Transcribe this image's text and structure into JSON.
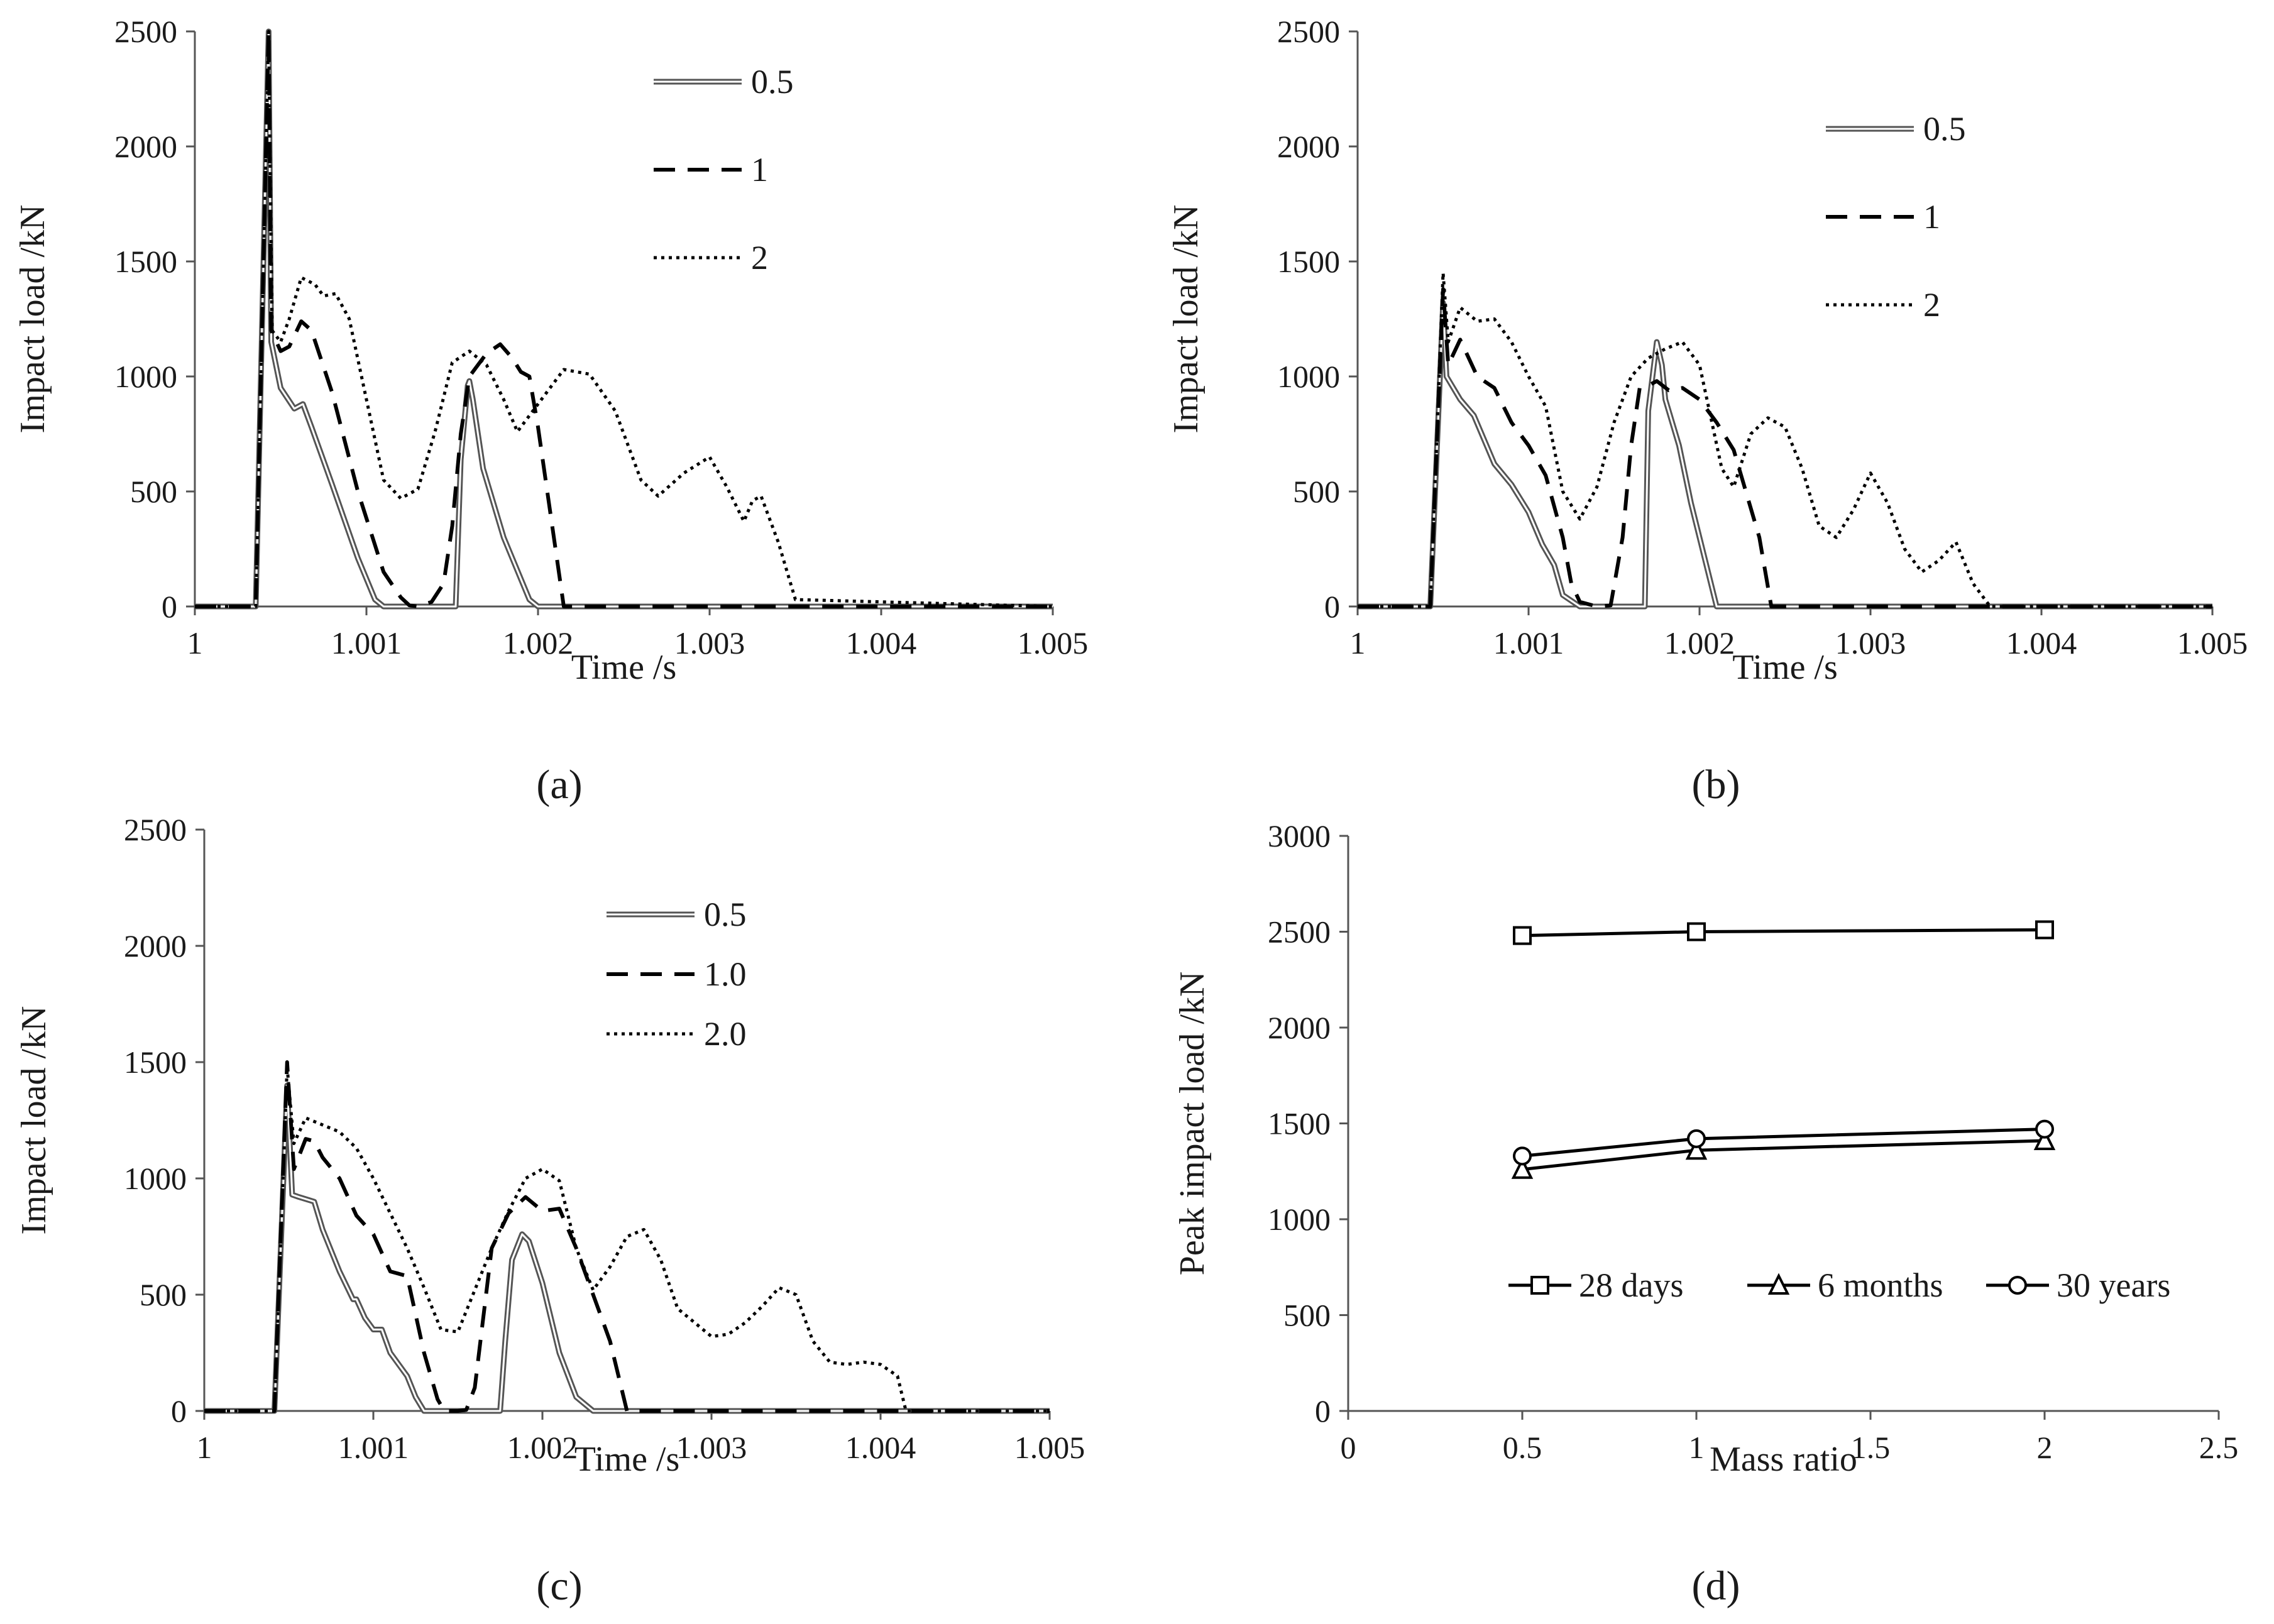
{
  "figure": {
    "panel_labels": [
      "(a)",
      "(b)",
      "(c)",
      "(d)"
    ]
  },
  "chart_data": [
    {
      "type": "line",
      "panel": "(a)",
      "xlabel": "Time /s",
      "ylabel": "Impact load /kN",
      "xlim": [
        1,
        1.005
      ],
      "ylim": [
        0,
        2500
      ],
      "xticks": [
        "1",
        "1.001",
        "1.002",
        "1.003",
        "1.004",
        "1.005"
      ],
      "yticks": [
        "0",
        "500",
        "1000",
        "1500",
        "2000",
        "2500"
      ],
      "legend_position": "top-right",
      "series": [
        {
          "name": "0.5",
          "style": "double",
          "x": [
            1.0,
            1.000355,
            1.00043,
            1.000445,
            1.0005,
            1.00058,
            1.00063,
            1.00068,
            1.0008,
            1.00095,
            1.00105,
            1.0011,
            1.00152,
            1.00155,
            1.00159,
            1.0016,
            1.00162,
            1.00168,
            1.0018,
            1.00195,
            1.002,
            1.005
          ],
          "y": [
            0,
            0,
            2500,
            1150,
            950,
            860,
            880,
            780,
            530,
            210,
            30,
            0,
            0,
            640,
            960,
            980,
            900,
            600,
            300,
            30,
            0,
            0
          ]
        },
        {
          "name": "1",
          "style": "dashed",
          "x": [
            1.0,
            1.000355,
            1.00043,
            1.000445,
            1.0005,
            1.00055,
            1.00062,
            1.00068,
            1.0008,
            1.00095,
            1.0011,
            1.0012,
            1.00125,
            1.0013,
            1.00138,
            1.00145,
            1.0015,
            1.00155,
            1.0016,
            1.0017,
            1.00178,
            1.00185,
            1.0019,
            1.00195,
            1.002,
            1.00215,
            1.005
          ],
          "y": [
            0,
            0,
            2500,
            1200,
            1110,
            1130,
            1240,
            1200,
            930,
            500,
            150,
            40,
            5,
            0,
            20,
            100,
            350,
            750,
            1000,
            1100,
            1140,
            1080,
            1020,
            1000,
            780,
            0,
            0
          ]
        },
        {
          "name": "2",
          "style": "dotted",
          "x": [
            1.0,
            1.000355,
            1.00043,
            1.00045,
            1.0005,
            1.00055,
            1.00062,
            1.0007,
            1.00075,
            1.00082,
            1.0009,
            1.001,
            1.0011,
            1.0012,
            1.0013,
            1.0014,
            1.0015,
            1.0016,
            1.0017,
            1.0018,
            1.00188,
            1.002,
            1.00215,
            1.0023,
            1.00245,
            1.0026,
            1.0027,
            1.00285,
            1.003,
            1.0031,
            1.0032,
            1.00325,
            1.0033,
            1.0034,
            1.0035,
            1.005
          ],
          "y": [
            0,
            0,
            2500,
            1200,
            1150,
            1250,
            1430,
            1400,
            1350,
            1360,
            1250,
            900,
            550,
            470,
            510,
            760,
            1060,
            1110,
            1050,
            900,
            760,
            880,
            1030,
            1010,
            850,
            550,
            480,
            580,
            650,
            520,
            370,
            460,
            480,
            280,
            30,
            0
          ]
        }
      ]
    },
    {
      "type": "line",
      "panel": "(b)",
      "xlabel": "Time /s",
      "ylabel": "Impact load /kN",
      "xlim": [
        1,
        1.005
      ],
      "ylim": [
        0,
        2500
      ],
      "xticks": [
        "1",
        "1.001",
        "1.002",
        "1.003",
        "1.004",
        "1.005"
      ],
      "yticks": [
        "0",
        "500",
        "1000",
        "1500",
        "2000",
        "2500"
      ],
      "legend_position": "top-right",
      "series": [
        {
          "name": "0.5",
          "style": "double",
          "x": [
            1.0,
            1.000425,
            1.0005,
            1.00052,
            1.0006,
            1.00068,
            1.0008,
            1.0009,
            1.001,
            1.00108,
            1.00115,
            1.0012,
            1.0013,
            1.00168,
            1.0017,
            1.00175,
            1.00178,
            1.0018,
            1.00188,
            1.00195,
            1.002,
            1.0021,
            1.005
          ],
          "y": [
            0,
            0,
            1320,
            1000,
            900,
            830,
            620,
            530,
            410,
            270,
            180,
            50,
            0,
            0,
            850,
            1150,
            1050,
            900,
            700,
            450,
            300,
            0,
            0
          ]
        },
        {
          "name": "1",
          "style": "dashed",
          "x": [
            1.0,
            1.000425,
            1.0005,
            1.00053,
            1.0006,
            1.0007,
            1.0008,
            1.0009,
            1.001,
            1.0011,
            1.0012,
            1.00125,
            1.0013,
            1.0014,
            1.00148,
            1.00155,
            1.0016,
            1.00165,
            1.0017,
            1.00175,
            1.00182,
            1.0019,
            1.002,
            1.0021,
            1.0022,
            1.00235,
            1.00242,
            1.005
          ],
          "y": [
            0,
            0,
            1380,
            1050,
            1160,
            1000,
            950,
            800,
            700,
            570,
            300,
            100,
            20,
            0,
            5,
            300,
            700,
            950,
            960,
            980,
            940,
            950,
            900,
            800,
            680,
            300,
            0,
            0
          ]
        },
        {
          "name": "2",
          "style": "dotted",
          "x": [
            1.0,
            1.000425,
            1.0005,
            1.00053,
            1.0006,
            1.0007,
            1.0008,
            1.0009,
            1.001,
            1.0011,
            1.0012,
            1.0013,
            1.0014,
            1.0015,
            1.0016,
            1.0017,
            1.0018,
            1.0019,
            1.002,
            1.00213,
            1.0022,
            1.0023,
            1.0024,
            1.0025,
            1.0026,
            1.0027,
            1.0028,
            1.0029,
            1.003,
            1.0031,
            1.0032,
            1.0033,
            1.0034,
            1.0035,
            1.0036,
            1.0037,
            1.0038,
            1.0039,
            1.00393,
            1.005
          ],
          "y": [
            0,
            0,
            1450,
            1150,
            1300,
            1240,
            1250,
            1150,
            1000,
            870,
            500,
            380,
            520,
            800,
            1000,
            1080,
            1120,
            1150,
            1050,
            600,
            520,
            750,
            820,
            780,
            600,
            350,
            300,
            420,
            580,
            450,
            250,
            150,
            200,
            280,
            100,
            0,
            0,
            0,
            0,
            0
          ]
        }
      ]
    },
    {
      "type": "line",
      "panel": "(c)",
      "xlabel": "Time /s",
      "ylabel": "Impact load /kN",
      "xlim": [
        1,
        1.005
      ],
      "ylim": [
        0,
        2500
      ],
      "xticks": [
        "1",
        "1.001",
        "1.002",
        "1.003",
        "1.004",
        "1.005"
      ],
      "yticks": [
        "0",
        "500",
        "1000",
        "1500",
        "2000",
        "2500"
      ],
      "legend_position": "top-right",
      "series": [
        {
          "name": "0.5",
          "style": "double",
          "x": [
            1.0,
            1.000415,
            1.00049,
            1.00052,
            1.00056,
            1.00065,
            1.0007,
            1.0008,
            1.00088,
            1.0009,
            1.00095,
            1.001,
            1.00105,
            1.0011,
            1.0012,
            1.00125,
            1.0013,
            1.00175,
            1.00178,
            1.00182,
            1.00188,
            1.00192,
            1.002,
            1.0021,
            1.0022,
            1.0023,
            1.005
          ],
          "y": [
            0,
            0,
            1400,
            930,
            920,
            900,
            780,
            600,
            480,
            480,
            400,
            350,
            350,
            250,
            150,
            60,
            0,
            0,
            300,
            650,
            760,
            730,
            550,
            250,
            60,
            0,
            0
          ]
        },
        {
          "name": "1.0",
          "style": "dashed",
          "x": [
            1.0,
            1.000415,
            1.00049,
            1.00053,
            1.0006,
            1.00065,
            1.0007,
            1.0008,
            1.0009,
            1.001,
            1.0011,
            1.0012,
            1.0013,
            1.00138,
            1.00142,
            1.0015,
            1.00155,
            1.0016,
            1.0017,
            1.0018,
            1.0019,
            1.002,
            1.0021,
            1.0022,
            1.0023,
            1.0024,
            1.0025,
            1.005
          ],
          "y": [
            0,
            0,
            1500,
            1040,
            1170,
            1160,
            1090,
            1000,
            840,
            760,
            600,
            580,
            250,
            50,
            0,
            0,
            5,
            100,
            700,
            850,
            920,
            860,
            870,
            700,
            500,
            300,
            0,
            0
          ]
        },
        {
          "name": "2.0",
          "style": "dotted",
          "x": [
            1.0,
            1.000415,
            1.00049,
            1.00053,
            1.0006,
            1.0007,
            1.0008,
            1.0009,
            1.001,
            1.0011,
            1.0012,
            1.0013,
            1.0014,
            1.0015,
            1.0016,
            1.0017,
            1.0018,
            1.0019,
            1.002,
            1.0021,
            1.0022,
            1.0023,
            1.0024,
            1.0025,
            1.0026,
            1.0027,
            1.0028,
            1.0029,
            1.003,
            1.0031,
            1.0032,
            1.0033,
            1.0034,
            1.0035,
            1.0036,
            1.0037,
            1.0038,
            1.0039,
            1.004,
            1.0041,
            1.00415,
            1.005
          ],
          "y": [
            0,
            0,
            1480,
            1150,
            1260,
            1230,
            1200,
            1130,
            1000,
            850,
            700,
            530,
            350,
            340,
            520,
            700,
            860,
            1000,
            1040,
            990,
            700,
            520,
            620,
            750,
            780,
            650,
            440,
            380,
            320,
            330,
            380,
            450,
            530,
            500,
            300,
            210,
            200,
            210,
            200,
            150,
            0,
            0
          ]
        }
      ]
    },
    {
      "type": "line",
      "panel": "(d)",
      "xlabel": "Mass ratio",
      "ylabel": "Peak impact load /kN",
      "xlim": [
        0,
        2.5
      ],
      "ylim": [
        0,
        3000
      ],
      "xticks": [
        "0",
        "0.5",
        "1",
        "1.5",
        "2",
        "2.5"
      ],
      "yticks": [
        "0",
        "500",
        "1000",
        "1500",
        "2000",
        "2500",
        "3000"
      ],
      "legend_position": "bottom-center",
      "categories_x": [
        0.5,
        1,
        2
      ],
      "series": [
        {
          "name": "28 days",
          "marker": "square",
          "values": [
            2480,
            2500,
            2510
          ]
        },
        {
          "name": "6 months",
          "marker": "triangle",
          "values": [
            1260,
            1360,
            1410
          ]
        },
        {
          "name": "30 years",
          "marker": "circle",
          "values": [
            1330,
            1420,
            1470
          ]
        }
      ]
    }
  ]
}
